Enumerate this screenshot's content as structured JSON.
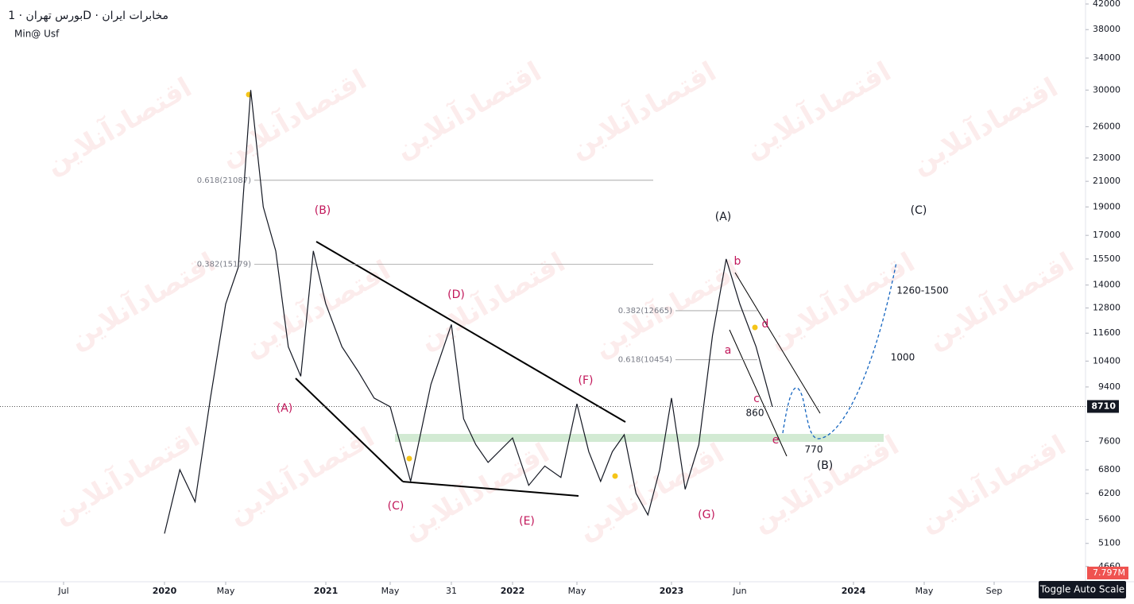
{
  "header": {
    "title": "بورس تهران · 1D · مخابرات ایران",
    "subtitle": "Min@ Usf"
  },
  "watermark": "اقتصادآنلاین",
  "chart_data": {
    "type": "line",
    "log_scale": true,
    "color": "#131722",
    "ylim": [
      4390,
      42660
    ],
    "yticks": [
      4660,
      5100,
      5600,
      6200,
      6800,
      7600,
      9400,
      10400,
      11600,
      12800,
      14000,
      15500,
      17000,
      19000,
      21000,
      23000,
      26000,
      30000,
      34000,
      38000,
      42000
    ],
    "xticks": [
      {
        "value": "2019-07",
        "label": "Jul"
      },
      {
        "value": "2020-01",
        "label": "2020"
      },
      {
        "value": "2020-05",
        "label": "May"
      },
      {
        "value": "2021-01",
        "label": "2021"
      },
      {
        "value": "2021-05",
        "label": "May"
      },
      {
        "value": "2021-08",
        "label": "31"
      },
      {
        "value": "2022-01",
        "label": "2022"
      },
      {
        "value": "2022-05",
        "label": "May"
      },
      {
        "value": "2023-01",
        "label": "2023"
      },
      {
        "value": "2023-06",
        "label": "Jun"
      },
      {
        "value": "2024-01",
        "label": "2024"
      },
      {
        "value": "2024-05",
        "label": "May"
      },
      {
        "value": "2024-09",
        "label": "Sep"
      }
    ],
    "x": [
      "2020-01",
      "2020-02",
      "2020-03",
      "2020-04",
      "2020-05",
      "2020-06",
      "2020-07",
      "2020-08",
      "2020-09",
      "2020-10",
      "2020-11",
      "2020-12",
      "2021-01",
      "2021-02",
      "2021-03",
      "2021-04",
      "2021-05",
      "2021-06",
      "2021-07",
      "2021-08",
      "2021-09",
      "2021-10",
      "2021-11",
      "2022-01",
      "2022-02",
      "2022-03",
      "2022-04",
      "2022-05",
      "2022-06",
      "2022-07",
      "2022-08",
      "2022-09",
      "2022-10",
      "2022-11",
      "2022-12",
      "2023-01",
      "2023-02",
      "2023-03",
      "2023-04",
      "2023-05",
      "2023-06",
      "2023-07",
      "2023-08"
    ],
    "values": [
      5300,
      6800,
      6000,
      9000,
      13000,
      15000,
      30000,
      19000,
      16000,
      11000,
      9800,
      16000,
      13000,
      11000,
      10000,
      9000,
      8700,
      6500,
      9500,
      12000,
      8300,
      7500,
      7000,
      7700,
      6400,
      6900,
      6600,
      8800,
      7300,
      6500,
      7300,
      7800,
      6200,
      5700,
      6800,
      9000,
      6300,
      7500,
      11500,
      15500,
      13000,
      11000,
      8700
    ],
    "last_price": 8710,
    "volume_label": "7.797M",
    "fib_levels": [
      {
        "label": "0.618(21087)",
        "value": 21087
      },
      {
        "label": "0.382(15179)",
        "value": 15179
      },
      {
        "label": "0.382(12665)",
        "value": 12665
      },
      {
        "label": "0.618(10454)",
        "value": 10454
      }
    ],
    "annotations": [
      "(B)",
      "(A)",
      "(C)",
      "(D)",
      "(E)",
      "(F)",
      "(G)",
      "(A)",
      "(C)",
      "(B)",
      "b",
      "d",
      "a",
      "c",
      "e",
      "860",
      "770",
      "1260-1500",
      "1000"
    ]
  },
  "button": "Toggle Auto Scale"
}
